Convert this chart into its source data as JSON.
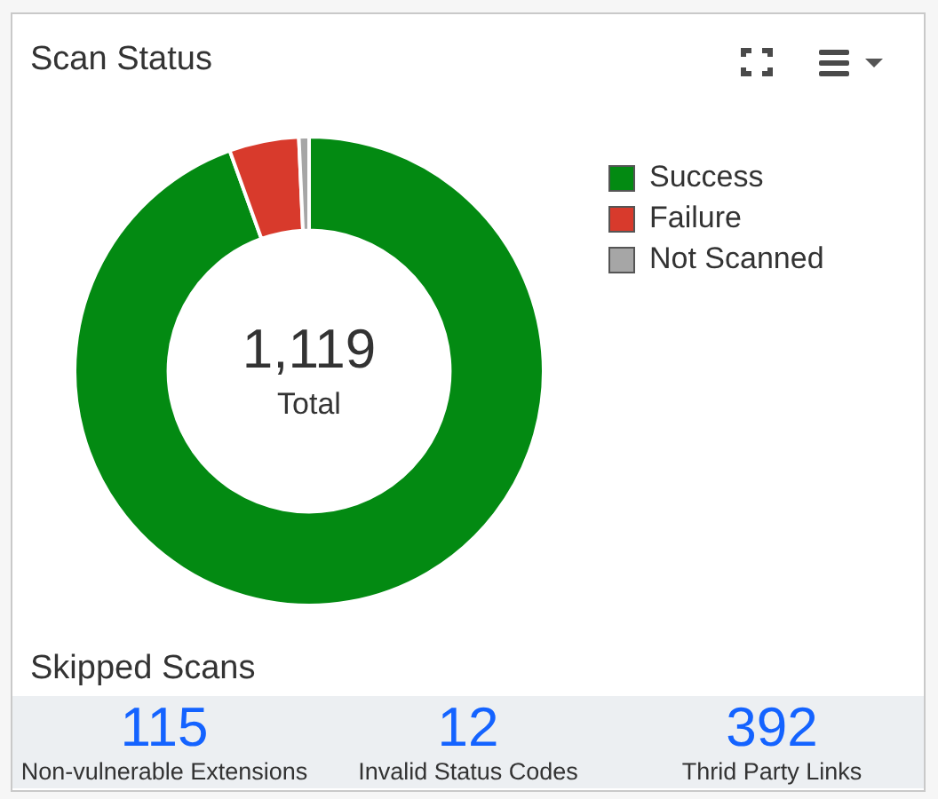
{
  "chart_data": [
    {
      "type": "donut",
      "title": "Scan Status",
      "categories": [
        "Success",
        "Failure",
        "Not Scanned"
      ],
      "values": [
        94.5,
        4.8,
        0.7
      ],
      "colors": [
        "#038a12",
        "#d83a2c",
        "#a6a6a6"
      ],
      "legend": "top right",
      "annotations": [
        "1,119",
        "Total"
      ]
    },
    {
      "type": "other",
      "title": "Skipped Scans",
      "categories": [
        "Non-vulnerable Extensions",
        "Invalid Status Codes",
        "Thrid Party Links"
      ],
      "values": [
        115,
        12,
        392
      ],
      "data_labels": true
    }
  ]
}
